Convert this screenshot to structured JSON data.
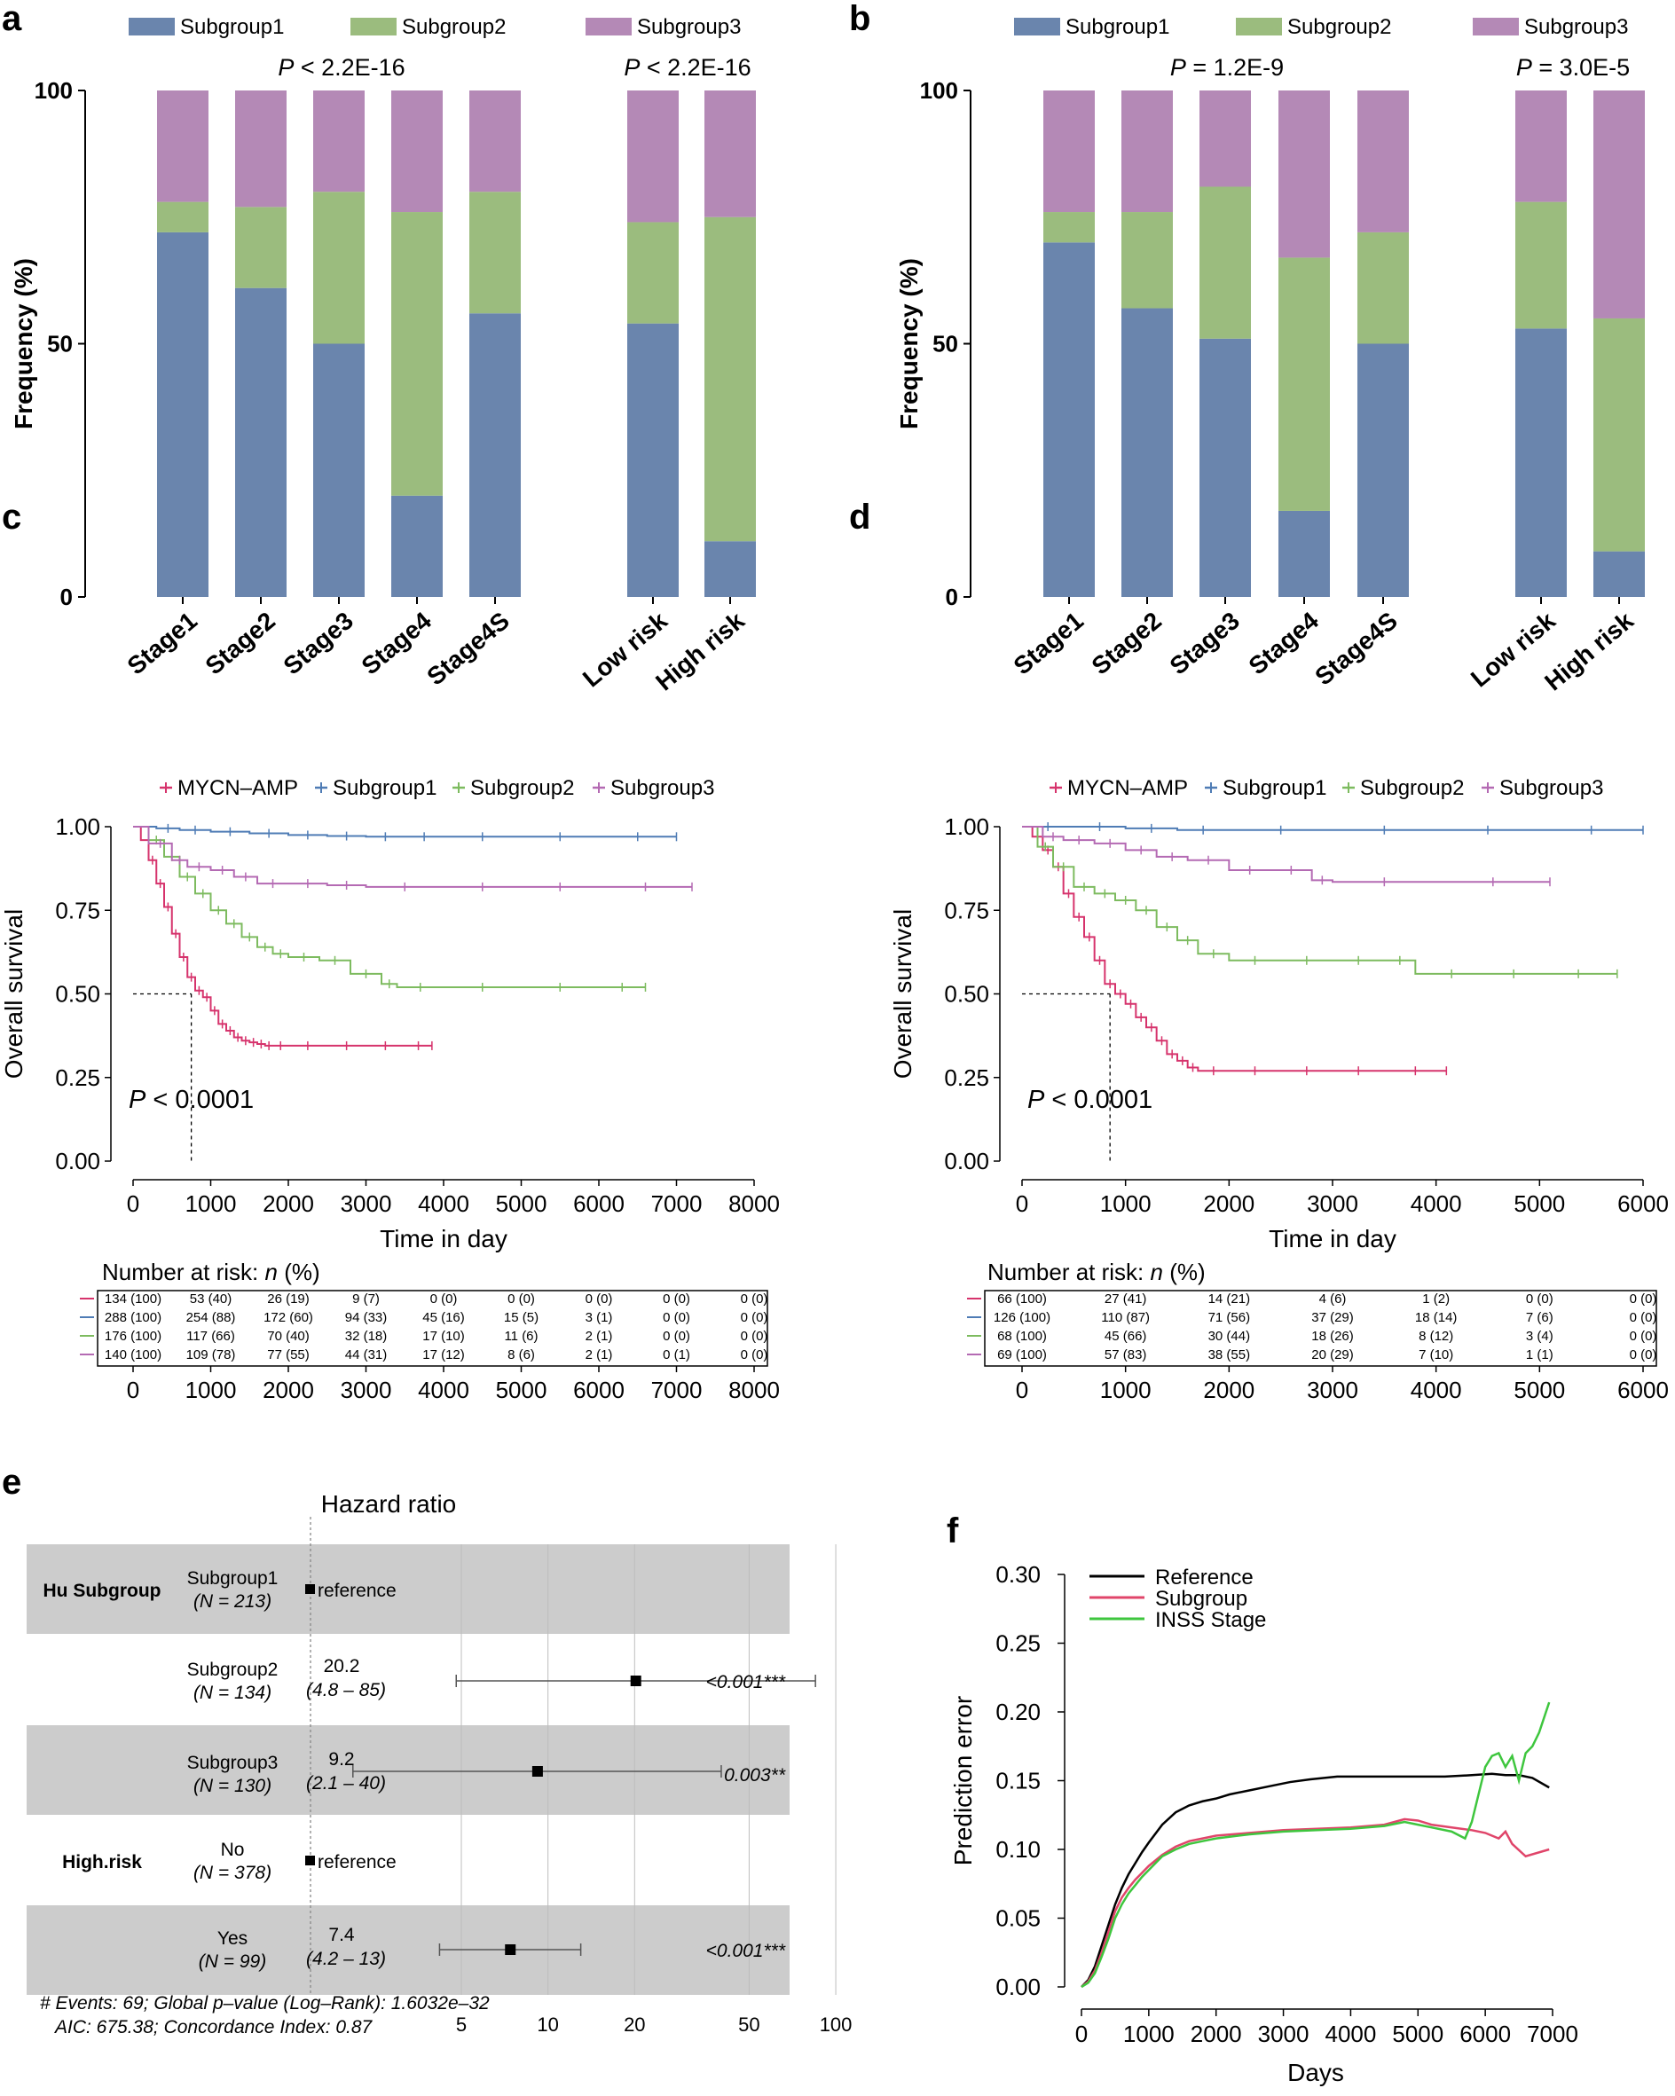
{
  "panel_labels": [
    "a",
    "b",
    "c",
    "d",
    "e",
    "f"
  ],
  "colors": {
    "subgroup1": "#6a85ad",
    "subgroup2": "#9bbc7e",
    "subgroup3": "#b489b6",
    "mycn": "#d6336c",
    "km_sub1": "#4f7cb5",
    "km_sub2": "#7dbb5f",
    "km_sub3": "#b46ab3",
    "ref_black": "#000000",
    "pe_subgroup": "#e0456a",
    "pe_inss": "#3ec63e",
    "forest_band": "#cccccc"
  },
  "chart_data": [
    {
      "panel": "a",
      "type": "bar",
      "stacked": true,
      "legend": [
        "Subgroup1",
        "Subgroup2",
        "Subgroup3"
      ],
      "ylabel": "Frequency (%)",
      "ylim": [
        0,
        100
      ],
      "yticks": [
        "0",
        "50",
        "100"
      ],
      "categories": [
        "Stage1",
        "Stage2",
        "Stage3",
        "Stage4",
        "Stage4S",
        "Low risk",
        "High risk"
      ],
      "series": [
        {
          "name": "Subgroup1",
          "values": [
            72,
            61,
            50,
            20,
            56,
            54,
            11
          ]
        },
        {
          "name": "Subgroup2",
          "values": [
            6,
            16,
            30,
            56,
            24,
            20,
            64
          ]
        },
        {
          "name": "Subgroup3",
          "values": [
            22,
            23,
            20,
            24,
            20,
            26,
            25
          ]
        }
      ],
      "pvalues": [
        {
          "p": "P",
          "text": " < 2.2E-16"
        },
        {
          "p": "P",
          "text": " < 2.2E-16"
        }
      ]
    },
    {
      "panel": "b",
      "type": "bar",
      "stacked": true,
      "legend": [
        "Subgroup1",
        "Subgroup2",
        "Subgroup3"
      ],
      "ylabel": "Frequency (%)",
      "ylim": [
        0,
        100
      ],
      "yticks": [
        "0",
        "50",
        "100"
      ],
      "categories": [
        "Stage1",
        "Stage2",
        "Stage3",
        "Stage4",
        "Stage4S",
        "Low risk",
        "High risk"
      ],
      "series": [
        {
          "name": "Subgroup1",
          "values": [
            70,
            57,
            51,
            17,
            50,
            53,
            9
          ]
        },
        {
          "name": "Subgroup2",
          "values": [
            6,
            19,
            30,
            50,
            22,
            25,
            46
          ]
        },
        {
          "name": "Subgroup3",
          "values": [
            24,
            24,
            19,
            33,
            28,
            22,
            45
          ]
        }
      ],
      "pvalues": [
        {
          "p": "P",
          "text": " = 1.2E-9"
        },
        {
          "p": "P",
          "text": " = 3.0E-5"
        }
      ]
    },
    {
      "panel": "c",
      "type": "line",
      "kind": "kaplan-meier",
      "legend": [
        "MYCN–AMP",
        "Subgroup1",
        "Subgroup2",
        "Subgroup3"
      ],
      "ylabel": "Overall survival",
      "xlabel": "Time in day",
      "xlim": [
        0,
        8000
      ],
      "ylim": [
        0,
        1
      ],
      "xticks": [
        "0",
        "1000",
        "2000",
        "3000",
        "4000",
        "5000",
        "6000",
        "7000",
        "8000"
      ],
      "yticks": [
        "0.00",
        "0.25",
        "0.50",
        "0.75",
        "1.00"
      ],
      "median_x": 750,
      "ptext": {
        "p": "P",
        "text": " < 0.0001"
      },
      "series": [
        {
          "name": "MYCN–AMP",
          "x": [
            0,
            100,
            200,
            300,
            400,
            500,
            600,
            700,
            800,
            900,
            1000,
            1100,
            1200,
            1300,
            1400,
            1500,
            1600,
            1700,
            1800,
            2000,
            2500,
            3000,
            3500,
            3850
          ],
          "y": [
            1.0,
            0.96,
            0.9,
            0.83,
            0.76,
            0.68,
            0.61,
            0.55,
            0.51,
            0.49,
            0.45,
            0.41,
            0.39,
            0.37,
            0.36,
            0.355,
            0.35,
            0.345,
            0.345,
            0.345,
            0.345,
            0.345,
            0.345,
            0.345
          ]
        },
        {
          "name": "Subgroup1",
          "x": [
            0,
            300,
            600,
            1000,
            1500,
            2000,
            2500,
            3000,
            3500,
            4000,
            5000,
            6000,
            7000
          ],
          "y": [
            1.0,
            0.995,
            0.99,
            0.985,
            0.98,
            0.975,
            0.972,
            0.97,
            0.97,
            0.97,
            0.97,
            0.97,
            0.97
          ]
        },
        {
          "name": "Subgroup2",
          "x": [
            0,
            200,
            400,
            600,
            800,
            1000,
            1200,
            1400,
            1600,
            1800,
            2000,
            2400,
            2800,
            3200,
            3400,
            4000,
            5000,
            6000,
            6600
          ],
          "y": [
            1.0,
            0.96,
            0.91,
            0.85,
            0.8,
            0.75,
            0.71,
            0.67,
            0.64,
            0.62,
            0.61,
            0.6,
            0.56,
            0.53,
            0.52,
            0.52,
            0.52,
            0.52,
            0.52
          ]
        },
        {
          "name": "Subgroup3",
          "x": [
            0,
            200,
            500,
            700,
            1000,
            1300,
            1600,
            2000,
            2500,
            3000,
            4000,
            5000,
            6000,
            7200
          ],
          "y": [
            1.0,
            0.95,
            0.9,
            0.88,
            0.87,
            0.85,
            0.83,
            0.83,
            0.825,
            0.82,
            0.82,
            0.82,
            0.82,
            0.82
          ]
        }
      ],
      "risk_table": {
        "title_prefix": "Number at risk: ",
        "title_n": "n",
        "title_suffix": " (%)",
        "rows": [
          [
            "134 (100)",
            "53 (40)",
            "26 (19)",
            "9 (7)",
            "0 (0)",
            "0 (0)",
            "0 (0)",
            "0 (0)",
            "0 (0)"
          ],
          [
            "288 (100)",
            "254 (88)",
            "172 (60)",
            "94 (33)",
            "45 (16)",
            "15 (5)",
            "3 (1)",
            "0 (0)",
            "0 (0)"
          ],
          [
            "176 (100)",
            "117 (66)",
            "70 (40)",
            "32 (18)",
            "17 (10)",
            "11 (6)",
            "2 (1)",
            "0 (0)",
            "0 (0)"
          ],
          [
            "140 (100)",
            "109 (78)",
            "77 (55)",
            "44 (31)",
            "17 (12)",
            "8 (6)",
            "2 (1)",
            "0 (1)",
            "0 (0)"
          ]
        ]
      }
    },
    {
      "panel": "d",
      "type": "line",
      "kind": "kaplan-meier",
      "legend": [
        "MYCN–AMP",
        "Subgroup1",
        "Subgroup2",
        "Subgroup3"
      ],
      "ylabel": "Overall survival",
      "xlabel": "Time in day",
      "xlim": [
        0,
        6000
      ],
      "ylim": [
        0,
        1
      ],
      "xticks": [
        "0",
        "1000",
        "2000",
        "3000",
        "4000",
        "5000",
        "6000"
      ],
      "yticks": [
        "0.00",
        "0.25",
        "0.50",
        "0.75",
        "1.00"
      ],
      "median_x": 850,
      "ptext": {
        "p": "P",
        "text": " < 0.0001"
      },
      "series": [
        {
          "name": "MYCN–AMP",
          "x": [
            0,
            100,
            200,
            300,
            400,
            500,
            600,
            700,
            800,
            900,
            1000,
            1100,
            1200,
            1300,
            1400,
            1500,
            1600,
            1700,
            2000,
            2500,
            3000,
            3500,
            4100
          ],
          "y": [
            1.0,
            0.97,
            0.93,
            0.88,
            0.8,
            0.73,
            0.67,
            0.6,
            0.53,
            0.5,
            0.47,
            0.43,
            0.4,
            0.36,
            0.32,
            0.3,
            0.28,
            0.27,
            0.27,
            0.27,
            0.27,
            0.27,
            0.27
          ]
        },
        {
          "name": "Subgroup1",
          "x": [
            0,
            500,
            1000,
            1500,
            2000,
            3000,
            4000,
            5000,
            6000
          ],
          "y": [
            1.0,
            1.0,
            0.995,
            0.99,
            0.99,
            0.99,
            0.99,
            0.99,
            0.99
          ]
        },
        {
          "name": "Subgroup2",
          "x": [
            0,
            150,
            300,
            500,
            700,
            900,
            1100,
            1300,
            1500,
            1700,
            2000,
            2500,
            3000,
            3500,
            3800,
            4500,
            5000,
            5750
          ],
          "y": [
            1.0,
            0.94,
            0.88,
            0.82,
            0.8,
            0.78,
            0.75,
            0.7,
            0.66,
            0.62,
            0.6,
            0.6,
            0.6,
            0.6,
            0.56,
            0.56,
            0.56,
            0.56
          ]
        },
        {
          "name": "Subgroup3",
          "x": [
            0,
            200,
            400,
            700,
            1000,
            1300,
            1600,
            2000,
            2400,
            2800,
            3000,
            4000,
            5100
          ],
          "y": [
            1.0,
            0.97,
            0.96,
            0.95,
            0.93,
            0.91,
            0.9,
            0.87,
            0.87,
            0.84,
            0.835,
            0.835,
            0.835
          ]
        }
      ],
      "risk_table": {
        "title_prefix": "Number at risk: ",
        "title_n": "n",
        "title_suffix": " (%)",
        "rows": [
          [
            "66 (100)",
            "27 (41)",
            "14 (21)",
            "4 (6)",
            "1 (2)",
            "0 (0)",
            "0 (0)"
          ],
          [
            "126 (100)",
            "110 (87)",
            "71 (56)",
            "37 (29)",
            "18 (14)",
            "7 (6)",
            "0 (0)"
          ],
          [
            "68 (100)",
            "45 (66)",
            "30 (44)",
            "18 (26)",
            "8 (12)",
            "3 (4)",
            "0 (0)"
          ],
          [
            "69 (100)",
            "57 (83)",
            "38 (55)",
            "20 (29)",
            "7 (10)",
            "1 (1)",
            "0 (0)"
          ]
        ]
      }
    },
    {
      "panel": "e",
      "type": "forest",
      "title": "Hazard ratio",
      "xscale": "log",
      "xticks": [
        5,
        10,
        20,
        50,
        100
      ],
      "xtick_labels": [
        "5",
        "10",
        "20",
        "50",
        "100"
      ],
      "rows": [
        {
          "group": "Hu Subgroup",
          "level": "Subgroup1",
          "n": "(N = 213)",
          "hr": null,
          "est": "reference",
          "ci": "",
          "lo": null,
          "hi": null,
          "p": ""
        },
        {
          "group": "",
          "level": "Subgroup2",
          "n": "(N = 134)",
          "hr": 20.2,
          "est": "20.2",
          "ci": "(4.8 – 85)",
          "lo": 4.8,
          "hi": 85,
          "p": "<0.001***"
        },
        {
          "group": "",
          "level": "Subgroup3",
          "n": "(N = 130)",
          "hr": 9.2,
          "est": "9.2",
          "ci": "(2.1 – 40)",
          "lo": 2.1,
          "hi": 40,
          "p": "0.003**"
        },
        {
          "group": "High.risk",
          "level": "No",
          "n": "(N = 378)",
          "hr": null,
          "est": "reference",
          "ci": "",
          "lo": null,
          "hi": null,
          "p": ""
        },
        {
          "group": "",
          "level": "Yes",
          "n": "(N = 99)",
          "hr": 7.4,
          "est": "7.4",
          "ci": "(4.2 – 13)",
          "lo": 4.2,
          "hi": 13,
          "p": "<0.001***"
        }
      ],
      "footnote1": "# Events: 69; Global p–value (Log–Rank): 1.6032e–32",
      "footnote2": "AIC: 675.38; Concordance Index: 0.87"
    },
    {
      "panel": "f",
      "type": "line",
      "xlabel": "Days",
      "ylabel": "Prediction error",
      "xlim": [
        0,
        7000
      ],
      "ylim": [
        0,
        0.3
      ],
      "xticks": [
        "0",
        "1000",
        "2000",
        "3000",
        "4000",
        "5000",
        "6000",
        "7000"
      ],
      "yticks": [
        "0.00",
        "0.05",
        "0.10",
        "0.15",
        "0.20",
        "0.25",
        "0.30"
      ],
      "legend": [
        "Reference",
        "Subgroup",
        "INSS Stage"
      ],
      "series": [
        {
          "name": "Reference",
          "x": [
            0,
            100,
            200,
            300,
            400,
            500,
            600,
            700,
            800,
            900,
            1000,
            1200,
            1400,
            1600,
            1800,
            2000,
            2200,
            2500,
            2800,
            3100,
            3400,
            3800,
            4200,
            4600,
            5000,
            5400,
            5800,
            6100,
            6300,
            6500,
            6700,
            6950
          ],
          "y": [
            0.0,
            0.005,
            0.015,
            0.03,
            0.045,
            0.06,
            0.072,
            0.082,
            0.09,
            0.098,
            0.105,
            0.118,
            0.127,
            0.132,
            0.135,
            0.137,
            0.14,
            0.143,
            0.146,
            0.149,
            0.151,
            0.153,
            0.153,
            0.153,
            0.153,
            0.153,
            0.154,
            0.155,
            0.154,
            0.154,
            0.152,
            0.145
          ]
        },
        {
          "name": "Subgroup",
          "x": [
            0,
            100,
            200,
            300,
            400,
            500,
            600,
            700,
            800,
            900,
            1000,
            1200,
            1400,
            1600,
            1800,
            2000,
            2500,
            3000,
            3500,
            4000,
            4500,
            4800,
            5000,
            5200,
            5500,
            5800,
            6000,
            6200,
            6300,
            6400,
            6600,
            6950
          ],
          "y": [
            0.0,
            0.004,
            0.012,
            0.025,
            0.04,
            0.055,
            0.065,
            0.072,
            0.078,
            0.083,
            0.088,
            0.096,
            0.102,
            0.106,
            0.108,
            0.11,
            0.112,
            0.114,
            0.115,
            0.116,
            0.118,
            0.122,
            0.121,
            0.118,
            0.116,
            0.114,
            0.112,
            0.108,
            0.113,
            0.104,
            0.095,
            0.1
          ]
        },
        {
          "name": "INSS Stage",
          "x": [
            0,
            100,
            200,
            300,
            400,
            500,
            600,
            700,
            800,
            900,
            1000,
            1200,
            1400,
            1600,
            1800,
            2000,
            2500,
            3000,
            3500,
            4000,
            4500,
            4800,
            5000,
            5200,
            5500,
            5700,
            5800,
            5900,
            6000,
            6100,
            6200,
            6300,
            6400,
            6500,
            6600,
            6700,
            6800,
            6950
          ],
          "y": [
            0.0,
            0.003,
            0.01,
            0.022,
            0.035,
            0.05,
            0.06,
            0.068,
            0.074,
            0.08,
            0.085,
            0.095,
            0.1,
            0.104,
            0.106,
            0.108,
            0.111,
            0.113,
            0.114,
            0.115,
            0.117,
            0.12,
            0.118,
            0.116,
            0.113,
            0.108,
            0.12,
            0.14,
            0.16,
            0.168,
            0.17,
            0.16,
            0.168,
            0.15,
            0.17,
            0.175,
            0.185,
            0.207
          ]
        }
      ]
    }
  ]
}
